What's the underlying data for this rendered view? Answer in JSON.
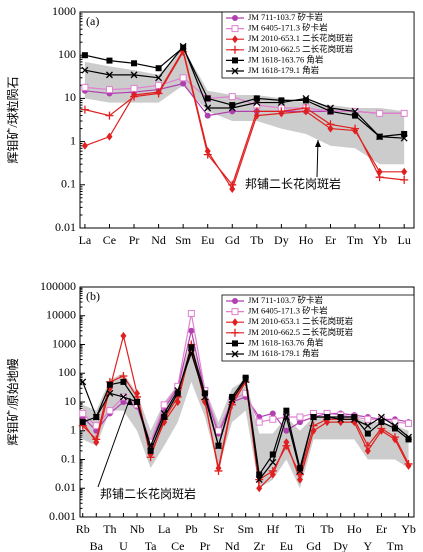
{
  "chart_data": [
    {
      "type": "line",
      "label": "(a)",
      "ylabel": "辉钼矿/球粒陨石",
      "log_scale": true,
      "ylim": [
        0.01,
        1000
      ],
      "yticks": [
        0.01,
        0.1,
        1,
        10,
        100,
        1000
      ],
      "categories": [
        "La",
        "Ce",
        "Pr",
        "Nd",
        "Sm",
        "Eu",
        "Gd",
        "Tb",
        "Dy",
        "Ho",
        "Er",
        "Tm",
        "Yb",
        "Lu"
      ],
      "band": {
        "color": "#cccccc",
        "upper": [
          70,
          55,
          45,
          35,
          150,
          15,
          12,
          12,
          10,
          8,
          7,
          6,
          6,
          5
        ],
        "lower": [
          10,
          8,
          8,
          8,
          20,
          5,
          3,
          3,
          2,
          1.5,
          0.8,
          0.7,
          0.3,
          0.3
        ]
      },
      "annotation": "邦铺二长花岗斑岩",
      "series": [
        {
          "name": "JM 711-103.7 矽卡岩",
          "color": "#b040b0",
          "marker": "circle",
          "values": [
            15,
            13,
            14,
            16,
            22,
            4,
            5,
            5,
            5,
            5,
            5,
            5,
            4.5,
            4.5
          ]
        },
        {
          "name": "JM 6405-171.3 矽卡岩",
          "color": "#e080d0",
          "marker": "square-open",
          "values": [
            18,
            16,
            17,
            20,
            30,
            10,
            11,
            7,
            6,
            6,
            5,
            5,
            4.5,
            4.5
          ]
        },
        {
          "name": "JM 2010-653.1 二长花岗斑岩",
          "color": "#e02020",
          "marker": "diamond",
          "values": [
            0.8,
            1.3,
            12,
            14,
            130,
            0.6,
            0.08,
            4,
            4.5,
            5,
            2,
            1.8,
            0.2,
            0.2
          ]
        },
        {
          "name": "JM 2010-662.5 二长花岗斑岩",
          "color": "#e02020",
          "marker": "plus",
          "values": [
            5.5,
            4,
            11,
            13,
            120,
            0.5,
            0.1,
            5,
            5,
            6,
            2.5,
            2,
            0.15,
            0.13
          ]
        },
        {
          "name": "JM 1618-163.76 角岩",
          "color": "#000000",
          "marker": "square",
          "values": [
            100,
            75,
            65,
            50,
            150,
            10,
            7,
            10,
            9,
            9,
            5,
            4,
            1.3,
            1.5
          ]
        },
        {
          "name": "JM 1618-179.1 角岩",
          "color": "#000000",
          "marker": "cross",
          "values": [
            45,
            35,
            35,
            30,
            160,
            6,
            6,
            8,
            8,
            10,
            6,
            5,
            1.3,
            1.2
          ]
        }
      ]
    },
    {
      "type": "line",
      "label": "(b)",
      "ylabel": "辉钼矿/原始地幔",
      "log_scale": true,
      "ylim": [
        0.001,
        100000
      ],
      "yticks": [
        0.001,
        0.01,
        0.1,
        1,
        10,
        100,
        1000,
        10000,
        100000
      ],
      "categories": [
        "Rb",
        "Ba",
        "Th",
        "U",
        "Nb",
        "Ta",
        "La",
        "Ce",
        "Pb",
        "Pr",
        "Sr",
        "Nd",
        "Sm",
        "Zr",
        "Hf",
        "Eu",
        "Ti",
        "Gd",
        "Tb",
        "Dy",
        "Ho",
        "Y",
        "Er",
        "Tm",
        "Yb"
      ],
      "band": {
        "color": "#cccccc",
        "upper": [
          8,
          5,
          60,
          100,
          20,
          1,
          10,
          40,
          1500,
          30,
          2,
          30,
          60,
          0.8,
          0.8,
          3,
          1,
          3,
          3,
          3,
          3,
          2,
          2,
          1.5,
          1
        ],
        "lower": [
          0.5,
          0.3,
          5,
          5,
          1,
          0.05,
          0.3,
          2,
          50,
          3,
          0.05,
          2,
          5,
          0.01,
          0.02,
          0.1,
          0.01,
          0.5,
          0.5,
          0.5,
          0.5,
          0.1,
          0.1,
          0.1,
          0.05
        ]
      },
      "annotation": "邦铺二长花岗斑岩",
      "series": [
        {
          "name": "JM 711-103.7 矽卡岩",
          "color": "#b040b0",
          "marker": "circle",
          "values": [
            3,
            1,
            4,
            10,
            7,
            0.3,
            6,
            30,
            3000,
            20,
            0.8,
            10,
            15,
            3,
            4,
            1,
            2,
            3,
            4,
            4,
            3.5,
            3,
            2.5,
            2.5,
            2
          ]
        },
        {
          "name": "JM 6405-171.3 矽卡岩",
          "color": "#e080d0",
          "marker": "square-open",
          "values": [
            4,
            1.5,
            5,
            15,
            8,
            0.4,
            8,
            35,
            12000,
            25,
            1,
            12,
            20,
            2,
            2.5,
            3,
            3,
            4,
            4,
            3.5,
            3,
            2.5,
            2.5,
            2,
            1.8
          ]
        },
        {
          "name": "JM 2010-653.1 二长花岗斑岩",
          "color": "#e02020",
          "marker": "diamond",
          "values": [
            2,
            0.4,
            30,
            2000,
            20,
            0.15,
            2,
            10,
            800,
            10,
            0.05,
            10,
            60,
            0.01,
            0.03,
            0.4,
            0.02,
            1,
            2,
            2,
            2,
            0.2,
            1,
            0.5,
            0.06
          ]
        },
        {
          "name": "JM 2010-662.5 二长花岗斑岩",
          "color": "#e02020",
          "marker": "plus",
          "values": [
            1.5,
            0.5,
            50,
            80,
            15,
            0.12,
            2.5,
            15,
            1000,
            12,
            0.04,
            8,
            50,
            0.02,
            0.04,
            0.3,
            0.03,
            1.5,
            2.5,
            2.5,
            2.5,
            0.3,
            1.2,
            0.6,
            0.07
          ]
        },
        {
          "name": "JM 1618-163.76 角岩",
          "color": "#000000",
          "marker": "square",
          "values": [
            2,
            3,
            40,
            50,
            10,
            0.2,
            3,
            20,
            800,
            20,
            0.3,
            15,
            70,
            0.03,
            0.15,
            5,
            0.05,
            3,
            3,
            3,
            3,
            0.8,
            2,
            1.2,
            0.5
          ]
        },
        {
          "name": "JM 1618-179.1 角岩",
          "color": "#000000",
          "marker": "cross",
          "values": [
            50,
            3,
            20,
            15,
            10,
            0.3,
            4,
            25,
            500,
            15,
            0.3,
            12,
            60,
            0.02,
            0.08,
            3,
            0.04,
            3,
            3,
            2.5,
            2.5,
            1.5,
            3,
            1.5,
            0.6
          ]
        }
      ]
    }
  ]
}
